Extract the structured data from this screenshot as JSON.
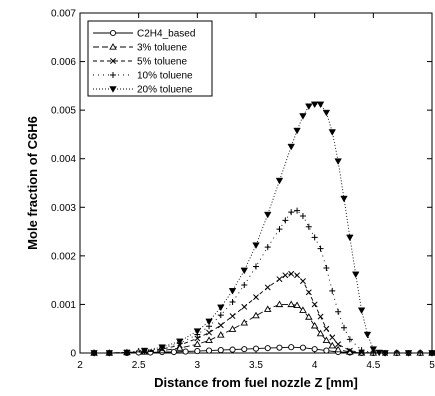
{
  "chart_data": {
    "type": "line",
    "xlabel": "Distance from fuel nozzle  Z [mm]",
    "ylabel": "Mole fraction of C6H6",
    "xlim": [
      2,
      5
    ],
    "ylim": [
      0,
      0.007
    ],
    "x_ticks": [
      "2",
      "2.5",
      "3",
      "3.5",
      "4",
      "4.5",
      "5"
    ],
    "y_ticks": [
      "0",
      "0.001",
      "0.002",
      "0.003",
      "0.004",
      "0.005",
      "0.006",
      "0.007"
    ],
    "grid": false,
    "legend_position": "top-left",
    "series": [
      {
        "name": "C2H4_based",
        "marker": "circle",
        "dash": "solid",
        "x": [
          2.12,
          2.25,
          2.4,
          2.5,
          2.6,
          2.7,
          2.8,
          2.9,
          3.0,
          3.1,
          3.2,
          3.3,
          3.4,
          3.5,
          3.6,
          3.7,
          3.8,
          3.9,
          4.0,
          4.1,
          4.2,
          4.3,
          4.4,
          4.5,
          4.6,
          4.7,
          4.8,
          4.9,
          5.0
        ],
        "y": [
          0.0,
          0.0,
          0.0,
          1e-05,
          1e-05,
          2e-05,
          2e-05,
          3e-05,
          4e-05,
          5e-05,
          6e-05,
          7e-05,
          8e-05,
          9e-05,
          0.0001,
          0.00011,
          0.00012,
          0.00011,
          8e-05,
          5e-05,
          2e-05,
          1e-05,
          0.0,
          0.0,
          0.0,
          0.0,
          0.0,
          0.0,
          0.0
        ]
      },
      {
        "name": "3% toluene",
        "marker": "triangle-up",
        "dash": "long",
        "x": [
          2.12,
          2.25,
          2.4,
          2.55,
          2.7,
          2.85,
          3.0,
          3.1,
          3.2,
          3.3,
          3.4,
          3.5,
          3.6,
          3.7,
          3.8,
          3.85,
          3.9,
          3.95,
          4.0,
          4.05,
          4.1,
          4.15,
          4.2,
          4.3,
          4.4,
          4.5,
          4.7,
          4.9,
          5.0
        ],
        "y": [
          0.0,
          0.0,
          1e-05,
          2e-05,
          5e-05,
          0.0001,
          0.00018,
          0.00026,
          0.00037,
          0.00049,
          0.00062,
          0.00077,
          0.0009,
          0.001,
          0.001,
          0.00098,
          0.00088,
          0.00074,
          0.00056,
          0.0004,
          0.00026,
          0.00015,
          7e-05,
          2e-05,
          0.0,
          0.0,
          0.0,
          0.0,
          0.0
        ]
      },
      {
        "name": "5% toluene",
        "marker": "x",
        "dash": "medium",
        "x": [
          2.12,
          2.25,
          2.4,
          2.55,
          2.7,
          2.85,
          3.0,
          3.1,
          3.2,
          3.3,
          3.4,
          3.5,
          3.6,
          3.7,
          3.75,
          3.8,
          3.85,
          3.9,
          3.95,
          4.0,
          4.05,
          4.1,
          4.15,
          4.2,
          4.3,
          4.4,
          4.6,
          4.8,
          5.0
        ],
        "y": [
          0.0,
          0.0,
          1e-05,
          3e-05,
          8e-05,
          0.00016,
          0.0003,
          0.00042,
          0.00057,
          0.00076,
          0.00095,
          0.00115,
          0.00135,
          0.00152,
          0.0016,
          0.00163,
          0.0016,
          0.00148,
          0.00125,
          0.001,
          0.00075,
          0.0005,
          0.00032,
          0.00018,
          5e-05,
          1e-05,
          0.0,
          0.0,
          0.0
        ]
      },
      {
        "name": "10% toluene",
        "marker": "plus",
        "dash": "dotted-sparse",
        "x": [
          2.12,
          2.25,
          2.4,
          2.55,
          2.7,
          2.85,
          3.0,
          3.1,
          3.2,
          3.3,
          3.4,
          3.5,
          3.6,
          3.7,
          3.75,
          3.8,
          3.85,
          3.9,
          3.95,
          4.0,
          4.05,
          4.1,
          4.15,
          4.2,
          4.25,
          4.3,
          4.4,
          4.5,
          4.7,
          4.9,
          5.0
        ],
        "y": [
          0.0,
          0.0,
          1e-05,
          4e-05,
          0.0001,
          0.0002,
          0.00038,
          0.00055,
          0.00078,
          0.00105,
          0.0014,
          0.00178,
          0.00218,
          0.00255,
          0.00273,
          0.0029,
          0.00293,
          0.00282,
          0.0026,
          0.00238,
          0.00215,
          0.00175,
          0.00128,
          0.00085,
          0.00052,
          0.00028,
          6e-05,
          0.0,
          0.0,
          0.0,
          0.0
        ]
      },
      {
        "name": "20% toluene",
        "marker": "triangle-down-filled",
        "dash": "dotted",
        "x": [
          2.12,
          2.25,
          2.4,
          2.55,
          2.7,
          2.85,
          3.0,
          3.1,
          3.2,
          3.3,
          3.4,
          3.5,
          3.6,
          3.7,
          3.8,
          3.85,
          3.9,
          3.95,
          4.0,
          4.05,
          4.1,
          4.15,
          4.2,
          4.25,
          4.3,
          4.35,
          4.4,
          4.45,
          4.5,
          4.55,
          4.6,
          4.8,
          5.0
        ],
        "y": [
          0.0,
          0.0,
          1e-05,
          5e-05,
          0.00012,
          0.00024,
          0.00045,
          0.00065,
          0.00094,
          0.00128,
          0.0017,
          0.00222,
          0.00285,
          0.00355,
          0.00425,
          0.00458,
          0.00488,
          0.00508,
          0.00512,
          0.00512,
          0.00495,
          0.00455,
          0.00395,
          0.00318,
          0.00238,
          0.00162,
          0.00088,
          0.00038,
          8e-05,
          1e-05,
          0.0,
          0.0,
          0.0
        ]
      }
    ]
  }
}
